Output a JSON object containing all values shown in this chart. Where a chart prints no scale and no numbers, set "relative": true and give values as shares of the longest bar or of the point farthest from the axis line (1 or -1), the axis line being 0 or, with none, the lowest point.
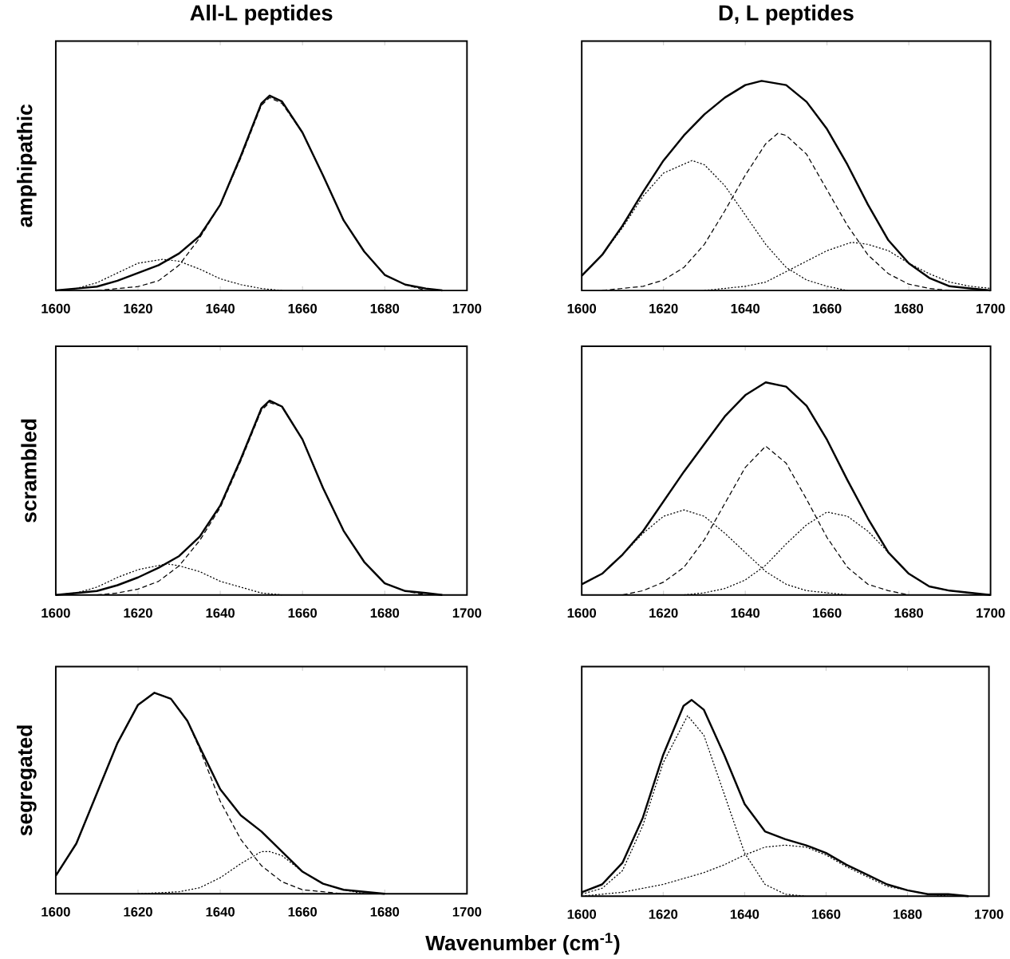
{
  "chart_data": [
    {
      "type": "line",
      "title": "All-L peptides",
      "ylabel": "amphipathic",
      "relative": true,
      "xlim": [
        1600,
        1700
      ],
      "xticks": [
        1600,
        1620,
        1640,
        1660,
        1680,
        1700
      ],
      "series": [
        {
          "color": "#000000",
          "line_style": "solid",
          "x": [
            1600,
            1605,
            1610,
            1615,
            1620,
            1625,
            1630,
            1635,
            1640,
            1645,
            1650,
            1652,
            1655,
            1660,
            1665,
            1670,
            1675,
            1680,
            1685,
            1690,
            1694
          ],
          "values": [
            0,
            0.01,
            0.02,
            0.05,
            0.09,
            0.13,
            0.19,
            0.28,
            0.44,
            0.69,
            0.96,
            1,
            0.97,
            0.81,
            0.59,
            0.36,
            0.2,
            0.08,
            0.03,
            0.01,
            0
          ]
        },
        {
          "color": "#000000",
          "line_style": "dashed",
          "x": [
            1610,
            1620,
            1625,
            1630,
            1635,
            1640,
            1645,
            1650,
            1652,
            1655,
            1660,
            1665,
            1670,
            1675,
            1680,
            1685,
            1690
          ],
          "values": [
            0,
            0.02,
            0.05,
            0.13,
            0.27,
            0.44,
            0.68,
            0.95,
            0.99,
            0.96,
            0.81,
            0.59,
            0.36,
            0.2,
            0.08,
            0.03,
            0
          ]
        },
        {
          "color": "#000000",
          "line_style": "dotted",
          "x": [
            1600,
            1605,
            1610,
            1615,
            1620,
            1626,
            1630,
            1635,
            1640,
            1645,
            1650,
            1655
          ],
          "values": [
            0,
            0.01,
            0.04,
            0.09,
            0.14,
            0.16,
            0.15,
            0.11,
            0.06,
            0.03,
            0.01,
            0
          ]
        }
      ]
    },
    {
      "type": "line",
      "title": "D, L peptides",
      "relative": true,
      "xlim": [
        1600,
        1700
      ],
      "xticks": [
        1600,
        1620,
        1640,
        1660,
        1680,
        1700
      ],
      "series": [
        {
          "color": "#000000",
          "line_style": "solid",
          "x": [
            1600,
            1605,
            1610,
            1615,
            1620,
            1625,
            1630,
            1635,
            1640,
            1644,
            1650,
            1655,
            1660,
            1665,
            1670,
            1675,
            1680,
            1685,
            1690,
            1695,
            1700
          ],
          "values": [
            0.07,
            0.17,
            0.31,
            0.47,
            0.62,
            0.74,
            0.84,
            0.92,
            0.98,
            1,
            0.98,
            0.9,
            0.77,
            0.6,
            0.41,
            0.24,
            0.13,
            0.06,
            0.02,
            0.01,
            0
          ]
        },
        {
          "color": "#000000",
          "line_style": "dotted",
          "x": [
            1600,
            1605,
            1610,
            1615,
            1620,
            1627,
            1630,
            1635,
            1640,
            1645,
            1650,
            1655,
            1660,
            1665
          ],
          "values": [
            0.07,
            0.17,
            0.3,
            0.45,
            0.56,
            0.62,
            0.6,
            0.5,
            0.36,
            0.22,
            0.11,
            0.05,
            0.02,
            0
          ]
        },
        {
          "color": "#000000",
          "line_style": "dashed",
          "x": [
            1605,
            1615,
            1620,
            1625,
            1630,
            1635,
            1640,
            1645,
            1648,
            1650,
            1655,
            1660,
            1665,
            1670,
            1675,
            1680,
            1685,
            1690
          ],
          "values": [
            0,
            0.02,
            0.05,
            0.11,
            0.22,
            0.38,
            0.55,
            0.7,
            0.75,
            0.74,
            0.65,
            0.48,
            0.31,
            0.17,
            0.08,
            0.03,
            0.01,
            0
          ]
        },
        {
          "color": "#000000",
          "line_style": "dotted",
          "x": [
            1630,
            1640,
            1645,
            1650,
            1655,
            1660,
            1666,
            1670,
            1675,
            1680,
            1685,
            1690,
            1695,
            1700
          ],
          "values": [
            0,
            0.02,
            0.04,
            0.09,
            0.14,
            0.19,
            0.23,
            0.22,
            0.19,
            0.13,
            0.08,
            0.04,
            0.02,
            0.01
          ]
        }
      ]
    },
    {
      "type": "line",
      "ylabel": "scrambled",
      "relative": true,
      "xlim": [
        1600,
        1700
      ],
      "xticks": [
        1600,
        1620,
        1640,
        1660,
        1680,
        1700
      ],
      "series": [
        {
          "color": "#000000",
          "line_style": "solid",
          "x": [
            1600,
            1605,
            1610,
            1615,
            1620,
            1625,
            1630,
            1635,
            1640,
            1645,
            1650,
            1652,
            1655,
            1660,
            1665,
            1670,
            1675,
            1680,
            1685,
            1690,
            1694
          ],
          "values": [
            0,
            0.01,
            0.02,
            0.05,
            0.09,
            0.14,
            0.2,
            0.3,
            0.46,
            0.7,
            0.96,
            1,
            0.97,
            0.8,
            0.55,
            0.33,
            0.17,
            0.06,
            0.02,
            0.01,
            0
          ]
        },
        {
          "color": "#000000",
          "line_style": "dashed",
          "x": [
            1610,
            1615,
            1620,
            1625,
            1630,
            1635,
            1640,
            1645,
            1650,
            1652,
            1655,
            1660,
            1665,
            1670,
            1675,
            1680,
            1685,
            1690
          ],
          "values": [
            0,
            0.01,
            0.03,
            0.07,
            0.15,
            0.28,
            0.45,
            0.69,
            0.95,
            0.99,
            0.97,
            0.8,
            0.55,
            0.33,
            0.17,
            0.06,
            0.02,
            0
          ]
        },
        {
          "color": "#000000",
          "line_style": "dotted",
          "x": [
            1600,
            1605,
            1610,
            1615,
            1620,
            1627,
            1630,
            1635,
            1640,
            1645,
            1650,
            1655
          ],
          "values": [
            0,
            0.01,
            0.04,
            0.09,
            0.13,
            0.16,
            0.15,
            0.12,
            0.07,
            0.04,
            0.01,
            0
          ]
        }
      ]
    },
    {
      "type": "line",
      "relative": true,
      "xlim": [
        1600,
        1700
      ],
      "xticks": [
        1600,
        1620,
        1640,
        1660,
        1680,
        1700
      ],
      "series": [
        {
          "color": "#000000",
          "line_style": "solid",
          "x": [
            1600,
            1605,
            1610,
            1615,
            1620,
            1625,
            1630,
            1635,
            1640,
            1645,
            1650,
            1655,
            1660,
            1665,
            1670,
            1675,
            1680,
            1685,
            1690,
            1695,
            1700
          ],
          "values": [
            0.05,
            0.1,
            0.19,
            0.3,
            0.44,
            0.58,
            0.71,
            0.84,
            0.94,
            1,
            0.98,
            0.89,
            0.73,
            0.54,
            0.36,
            0.2,
            0.1,
            0.04,
            0.02,
            0.01,
            0
          ]
        },
        {
          "color": "#000000",
          "line_style": "dotted",
          "x": [
            1600,
            1605,
            1610,
            1615,
            1620,
            1625,
            1630,
            1635,
            1640,
            1645,
            1650,
            1655,
            1660,
            1665
          ],
          "values": [
            0.05,
            0.1,
            0.19,
            0.29,
            0.37,
            0.4,
            0.37,
            0.29,
            0.2,
            0.11,
            0.05,
            0.02,
            0.01,
            0
          ]
        },
        {
          "color": "#000000",
          "line_style": "dashed",
          "x": [
            1610,
            1615,
            1620,
            1625,
            1630,
            1635,
            1640,
            1645,
            1650,
            1655,
            1660,
            1665,
            1670,
            1675,
            1680
          ],
          "values": [
            0,
            0.02,
            0.06,
            0.13,
            0.26,
            0.43,
            0.6,
            0.7,
            0.62,
            0.45,
            0.27,
            0.13,
            0.05,
            0.02,
            0
          ]
        },
        {
          "color": "#000000",
          "line_style": "dotted",
          "x": [
            1625,
            1630,
            1635,
            1640,
            1645,
            1650,
            1655,
            1660,
            1665,
            1670,
            1675,
            1680,
            1685,
            1690,
            1695,
            1700
          ],
          "values": [
            0,
            0.01,
            0.03,
            0.07,
            0.14,
            0.24,
            0.33,
            0.39,
            0.37,
            0.3,
            0.2,
            0.1,
            0.04,
            0.02,
            0.01,
            0
          ]
        }
      ]
    },
    {
      "type": "line",
      "ylabel": "segregated",
      "xlabel": "Wavenumber (cm$^{-1}$)",
      "relative": true,
      "xlim": [
        1600,
        1700
      ],
      "xticks": [
        1600,
        1620,
        1640,
        1660,
        1680,
        1700
      ],
      "series": [
        {
          "color": "#000000",
          "line_style": "solid",
          "x": [
            1600,
            1605,
            1610,
            1615,
            1620,
            1624,
            1628,
            1632,
            1635,
            1640,
            1645,
            1650,
            1655,
            1660,
            1665,
            1670,
            1675,
            1680
          ],
          "values": [
            0.09,
            0.25,
            0.5,
            0.75,
            0.94,
            1,
            0.97,
            0.86,
            0.73,
            0.52,
            0.39,
            0.31,
            0.21,
            0.11,
            0.05,
            0.02,
            0.01,
            0
          ]
        },
        {
          "color": "#000000",
          "line_style": "dashed",
          "x": [
            1600,
            1605,
            1610,
            1615,
            1620,
            1624,
            1628,
            1632,
            1635,
            1640,
            1645,
            1650,
            1655,
            1660,
            1665,
            1670
          ],
          "values": [
            0.09,
            0.25,
            0.5,
            0.75,
            0.94,
            1,
            0.97,
            0.86,
            0.72,
            0.46,
            0.27,
            0.14,
            0.06,
            0.02,
            0.01,
            0
          ]
        },
        {
          "color": "#000000",
          "line_style": "dotted",
          "x": [
            1620,
            1630,
            1635,
            1640,
            1645,
            1650,
            1652,
            1655,
            1660,
            1665,
            1670,
            1675
          ],
          "values": [
            0,
            0.01,
            0.03,
            0.08,
            0.15,
            0.21,
            0.21,
            0.19,
            0.11,
            0.05,
            0.02,
            0
          ]
        }
      ]
    },
    {
      "type": "line",
      "relative": true,
      "xlim": [
        1600,
        1700
      ],
      "xticks": [
        1600,
        1620,
        1640,
        1660,
        1680,
        1700
      ],
      "series": [
        {
          "color": "#000000",
          "line_style": "solid",
          "x": [
            1600,
            1605,
            1610,
            1615,
            1620,
            1625,
            1627,
            1630,
            1635,
            1640,
            1645,
            1650,
            1655,
            1660,
            1665,
            1670,
            1675,
            1680,
            1685,
            1690,
            1695
          ],
          "values": [
            0.02,
            0.06,
            0.17,
            0.4,
            0.72,
            0.97,
            1,
            0.95,
            0.72,
            0.47,
            0.33,
            0.29,
            0.26,
            0.22,
            0.16,
            0.11,
            0.06,
            0.03,
            0.01,
            0.01,
            0
          ]
        },
        {
          "color": "#000000",
          "line_style": "dotted",
          "x": [
            1600,
            1605,
            1610,
            1615,
            1620,
            1626,
            1630,
            1635,
            1640,
            1645,
            1650,
            1655
          ],
          "values": [
            0.01,
            0.04,
            0.13,
            0.36,
            0.68,
            0.92,
            0.82,
            0.52,
            0.22,
            0.06,
            0.01,
            0
          ]
        },
        {
          "color": "#000000",
          "line_style": "dotted",
          "x": [
            1600,
            1610,
            1615,
            1620,
            1625,
            1630,
            1635,
            1640,
            1645,
            1650,
            1655,
            1660,
            1665,
            1670,
            1675,
            1680,
            1685,
            1690
          ],
          "values": [
            0,
            0.02,
            0.04,
            0.06,
            0.09,
            0.12,
            0.16,
            0.21,
            0.25,
            0.26,
            0.25,
            0.21,
            0.15,
            0.1,
            0.05,
            0.03,
            0.01,
            0
          ]
        }
      ]
    }
  ]
}
